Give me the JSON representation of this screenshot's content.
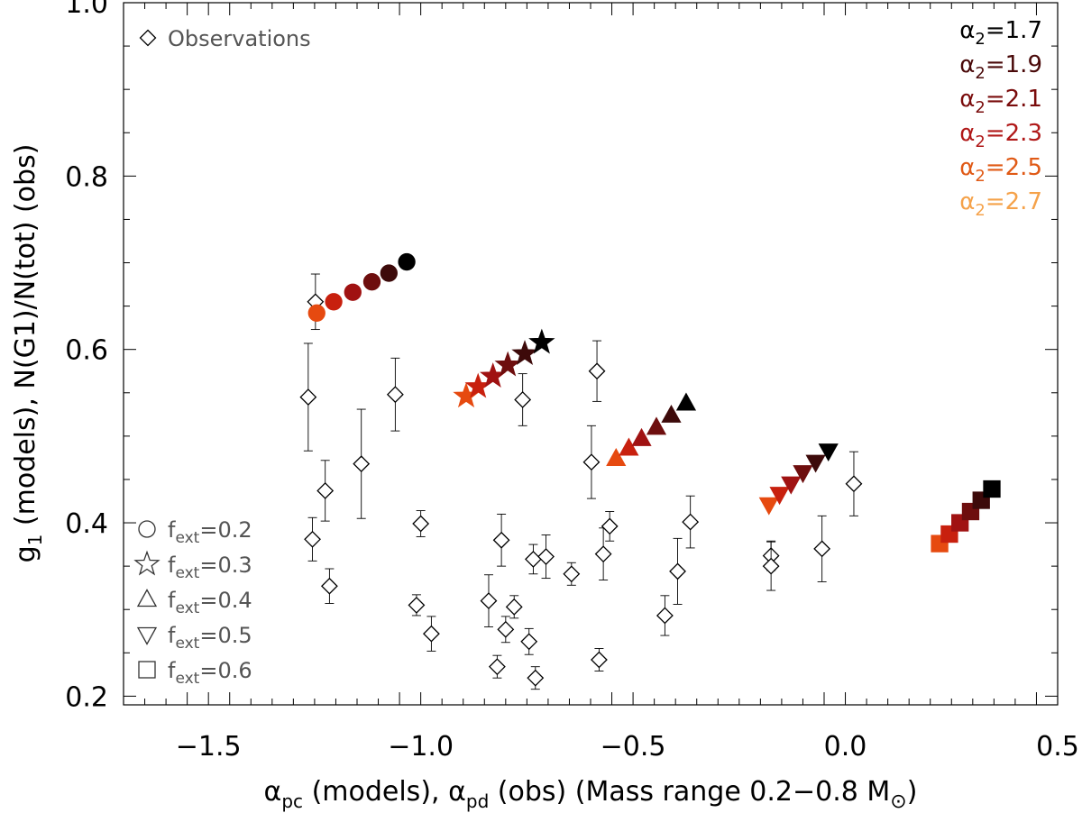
{
  "chart_data": {
    "type": "scatter",
    "xlabel": {
      "alpha": "α",
      "sub1": "pc",
      "mid": " (models), ",
      "sub2": "pd",
      "end": " (obs) (Mass range 0.2−0.8 M",
      "sun": "⊙",
      "close": ")"
    },
    "ylabel": {
      "g": "g",
      "sub": "1",
      "rest": " (models), N(G1)/N(tot) (obs)"
    },
    "xlim": [
      -1.7,
      0.5
    ],
    "ylim": [
      0.19,
      1.0
    ],
    "x_ticks": [
      -1.5,
      -1.0,
      -0.5,
      0.0,
      0.5
    ],
    "x_tick_labels": [
      "−1.5",
      "−1.0",
      "−0.5",
      "0.0",
      "0.5"
    ],
    "y_ticks": [
      0.2,
      0.4,
      0.6,
      0.8,
      1.0
    ],
    "y_tick_labels": [
      "0.2",
      "0.4",
      "0.6",
      "0.8",
      "1.0"
    ],
    "alpha_legend": {
      "prefix": "α",
      "sub": "2",
      "entries": [
        {
          "value": "=1.7",
          "color": "#000000"
        },
        {
          "value": "=1.9",
          "color": "#4a0a0a"
        },
        {
          "value": "=2.1",
          "color": "#7a0c0c"
        },
        {
          "value": "=2.3",
          "color": "#b01818"
        },
        {
          "value": "=2.5",
          "color": "#e05a16"
        },
        {
          "value": "=2.7",
          "color": "#f5a24a"
        }
      ]
    },
    "observations_label": "Observations",
    "fext_legend": [
      {
        "marker": "circle",
        "label": "f",
        "sub": "ext",
        "value": "=0.2"
      },
      {
        "marker": "star",
        "label": "f",
        "sub": "ext",
        "value": "=0.3"
      },
      {
        "marker": "triangle-up",
        "label": "f",
        "sub": "ext",
        "value": "=0.4"
      },
      {
        "marker": "triangle-down",
        "label": "f",
        "sub": "ext",
        "value": "=0.5"
      },
      {
        "marker": "square",
        "label": "f",
        "sub": "ext",
        "value": "=0.6"
      }
    ],
    "model_colors": [
      "#000000",
      "#3d0a0a",
      "#6e0e0e",
      "#a01212",
      "#c8200e",
      "#e64a10",
      "#f2902e"
    ],
    "models": [
      {
        "marker": "circle",
        "fext": "0.2",
        "points": [
          [
            -1.033,
            0.701
          ],
          [
            -1.075,
            0.688
          ],
          [
            -1.115,
            0.678
          ],
          [
            -1.16,
            0.666
          ],
          [
            -1.205,
            0.655
          ],
          [
            -1.245,
            0.642
          ]
        ]
      },
      {
        "marker": "star",
        "fext": "0.3",
        "points": [
          [
            -0.715,
            0.608
          ],
          [
            -0.755,
            0.595
          ],
          [
            -0.795,
            0.582
          ],
          [
            -0.83,
            0.569
          ],
          [
            -0.865,
            0.557
          ],
          [
            -0.893,
            0.546
          ]
        ]
      },
      {
        "marker": "triangle-up",
        "fext": "0.4",
        "points": [
          [
            -0.375,
            0.538
          ],
          [
            -0.41,
            0.524
          ],
          [
            -0.445,
            0.51
          ],
          [
            -0.48,
            0.497
          ],
          [
            -0.51,
            0.486
          ],
          [
            -0.54,
            0.474
          ]
        ]
      },
      {
        "marker": "triangle-down",
        "fext": "0.5",
        "points": [
          [
            -0.04,
            0.483
          ],
          [
            -0.07,
            0.47
          ],
          [
            -0.1,
            0.458
          ],
          [
            -0.128,
            0.445
          ],
          [
            -0.155,
            0.433
          ],
          [
            -0.18,
            0.421
          ]
        ]
      },
      {
        "marker": "square",
        "fext": "0.6",
        "points": [
          [
            0.345,
            0.439
          ],
          [
            0.32,
            0.426
          ],
          [
            0.295,
            0.413
          ],
          [
            0.27,
            0.4
          ],
          [
            0.245,
            0.387
          ],
          [
            0.222,
            0.376
          ]
        ]
      }
    ],
    "observations": [
      {
        "x": -1.248,
        "y": 0.655,
        "err": 0.032
      },
      {
        "x": -1.265,
        "y": 0.545,
        "err": 0.062
      },
      {
        "x": -1.225,
        "y": 0.437,
        "err": 0.035
      },
      {
        "x": -1.255,
        "y": 0.381,
        "err": 0.025
      },
      {
        "x": -1.215,
        "y": 0.327,
        "err": 0.02
      },
      {
        "x": -1.14,
        "y": 0.468,
        "err": 0.063
      },
      {
        "x": -1.06,
        "y": 0.548,
        "err": 0.042
      },
      {
        "x": -1.0,
        "y": 0.399,
        "err": 0.015
      },
      {
        "x": -1.01,
        "y": 0.305,
        "err": 0.012
      },
      {
        "x": -0.975,
        "y": 0.272,
        "err": 0.02
      },
      {
        "x": -0.84,
        "y": 0.31,
        "err": 0.03
      },
      {
        "x": -0.81,
        "y": 0.38,
        "err": 0.03
      },
      {
        "x": -0.82,
        "y": 0.234,
        "err": 0.013
      },
      {
        "x": -0.8,
        "y": 0.277,
        "err": 0.015
      },
      {
        "x": -0.78,
        "y": 0.303,
        "err": 0.013
      },
      {
        "x": -0.76,
        "y": 0.542,
        "err": 0.03
      },
      {
        "x": -0.735,
        "y": 0.358,
        "err": 0.017
      },
      {
        "x": -0.745,
        "y": 0.263,
        "err": 0.015
      },
      {
        "x": -0.73,
        "y": 0.221,
        "err": 0.013
      },
      {
        "x": -0.705,
        "y": 0.361,
        "err": 0.025
      },
      {
        "x": -0.645,
        "y": 0.341,
        "err": 0.013
      },
      {
        "x": -0.598,
        "y": 0.47,
        "err": 0.042
      },
      {
        "x": -0.585,
        "y": 0.575,
        "err": 0.035
      },
      {
        "x": -0.58,
        "y": 0.242,
        "err": 0.013
      },
      {
        "x": -0.57,
        "y": 0.364,
        "err": 0.03
      },
      {
        "x": -0.555,
        "y": 0.396,
        "err": 0.017
      },
      {
        "x": -0.425,
        "y": 0.293,
        "err": 0.023
      },
      {
        "x": -0.395,
        "y": 0.344,
        "err": 0.038
      },
      {
        "x": -0.365,
        "y": 0.401,
        "err": 0.03
      },
      {
        "x": -0.175,
        "y": 0.362,
        "err": 0.017
      },
      {
        "x": -0.175,
        "y": 0.35,
        "err": 0.028
      },
      {
        "x": -0.055,
        "y": 0.37,
        "err": 0.038
      },
      {
        "x": 0.02,
        "y": 0.445,
        "err": 0.037
      }
    ]
  }
}
